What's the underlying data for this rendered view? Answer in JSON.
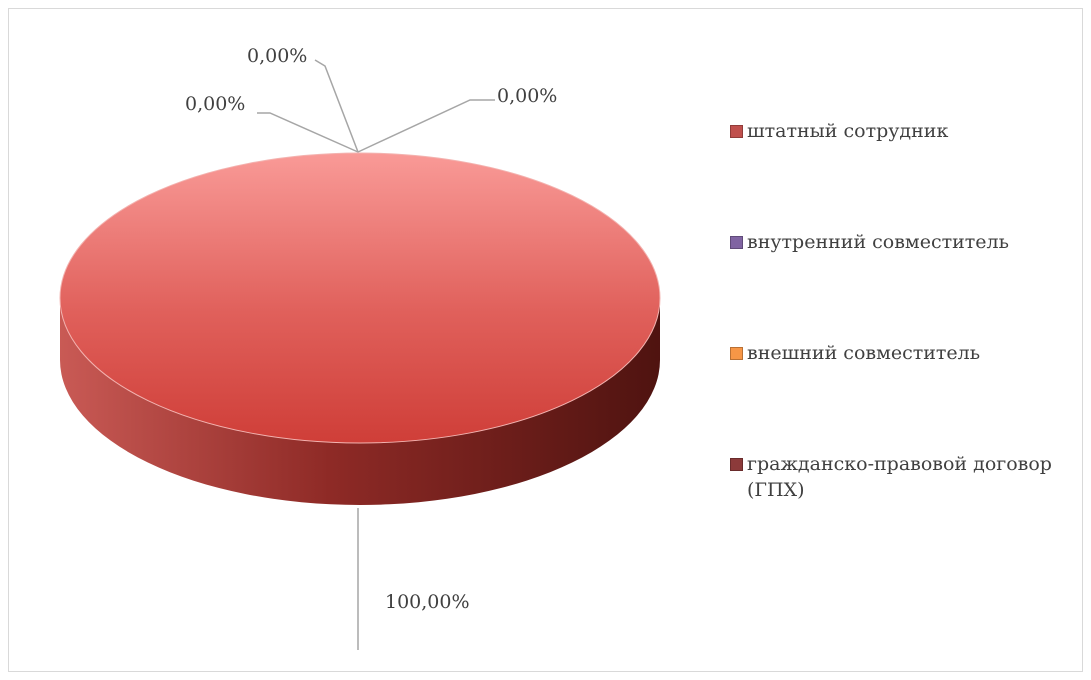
{
  "chart_data": {
    "type": "pie3d",
    "categories": [
      "штатный сотрудник",
      "внутренний совместитель",
      "внешний совместитель",
      "гражданско-правовой договор (ГПХ)"
    ],
    "values": [
      100,
      0,
      0,
      0
    ],
    "value_labels": [
      "100,00%",
      "0,00%",
      "0,00%",
      "0,00%"
    ],
    "colors": [
      "#c0504d",
      "#8064a2",
      "#f79646",
      "#8c3a3a"
    ],
    "legend": "right"
  }
}
